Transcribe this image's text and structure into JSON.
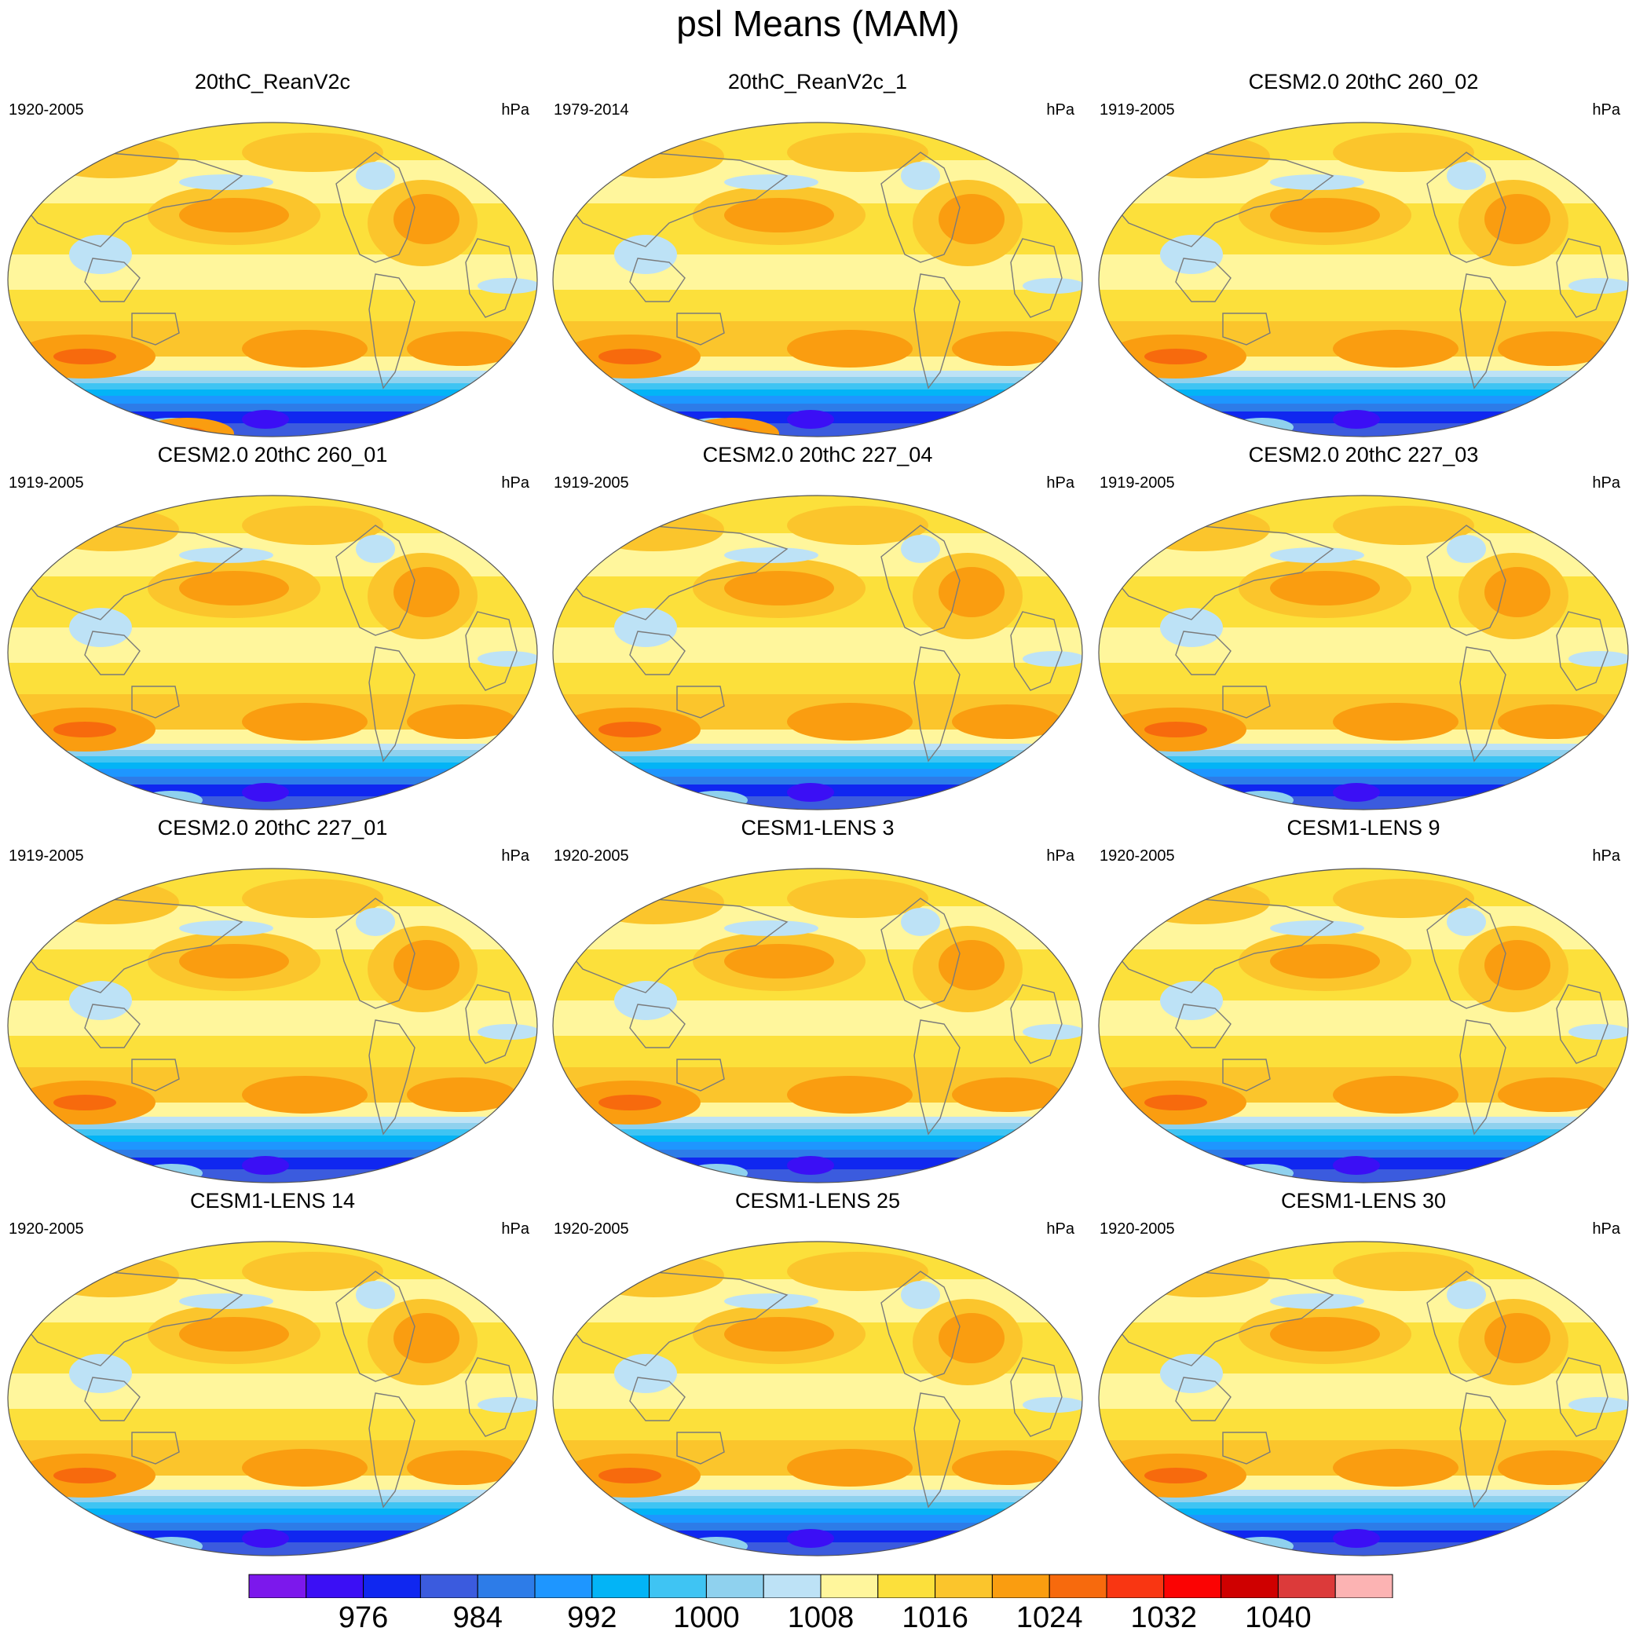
{
  "title": "psl Means (MAM)",
  "panels": [
    {
      "title": "20thC_ReanV2c",
      "years": "1920-2005",
      "units": "hPa",
      "antarctic_high": true
    },
    {
      "title": "20thC_ReanV2c_1",
      "years": "1979-2014",
      "units": "hPa",
      "antarctic_high": true
    },
    {
      "title": "CESM2.0 20thC 260_02",
      "years": "1919-2005",
      "units": "hPa",
      "antarctic_high": false
    },
    {
      "title": "CESM2.0 20thC 260_01",
      "years": "1919-2005",
      "units": "hPa",
      "antarctic_high": false
    },
    {
      "title": "CESM2.0 20thC 227_04",
      "years": "1919-2005",
      "units": "hPa",
      "antarctic_high": false
    },
    {
      "title": "CESM2.0 20thC 227_03",
      "years": "1919-2005",
      "units": "hPa",
      "antarctic_high": false
    },
    {
      "title": "CESM2.0 20thC 227_01",
      "years": "1919-2005",
      "units": "hPa",
      "antarctic_high": false
    },
    {
      "title": "CESM1-LENS 3",
      "years": "1920-2005",
      "units": "hPa",
      "antarctic_high": false
    },
    {
      "title": "CESM1-LENS 9",
      "years": "1920-2005",
      "units": "hPa",
      "antarctic_high": false
    },
    {
      "title": "CESM1-LENS 14",
      "years": "1920-2005",
      "units": "hPa",
      "antarctic_high": false
    },
    {
      "title": "CESM1-LENS 25",
      "years": "1920-2005",
      "units": "hPa",
      "antarctic_high": false
    },
    {
      "title": "CESM1-LENS 30",
      "years": "1920-2005",
      "units": "hPa",
      "antarctic_high": false
    }
  ],
  "colorbar": {
    "colors": [
      "#7c18ec",
      "#3b0ff5",
      "#1027f0",
      "#3b5bde",
      "#2d7ce8",
      "#1e96ff",
      "#03b4f6",
      "#3fc4f3",
      "#8fd1ee",
      "#bde2f6",
      "#fff69c",
      "#fce03b",
      "#fbc52c",
      "#fa9d10",
      "#f76a0d",
      "#f93612",
      "#fb0303",
      "#cf0000",
      "#dc3a3a",
      "#fcb3b3"
    ],
    "tick_labels": [
      "976",
      "984",
      "992",
      "1000",
      "1008",
      "1016",
      "1024",
      "1032",
      "1040"
    ]
  }
}
